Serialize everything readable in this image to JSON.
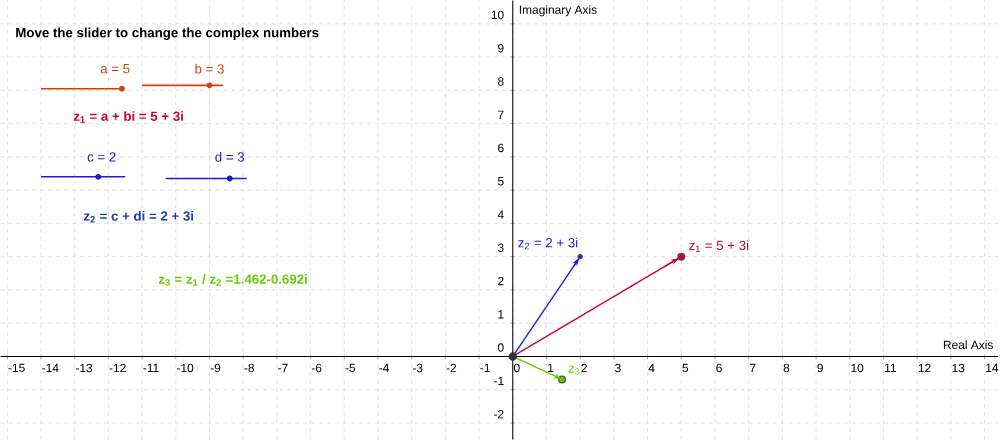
{
  "chart_data": {
    "type": "line",
    "title": "Move the slider to change the complex numbers",
    "xlabel": "Real Axis",
    "ylabel": "Imaginary Axis",
    "xlim": [
      -15.2,
      14.4
    ],
    "ylim": [
      -2.5,
      10.7
    ],
    "xticks": [
      -15,
      -14,
      -13,
      -12,
      -11,
      -10,
      -9,
      -8,
      -7,
      -6,
      -5,
      -4,
      -3,
      -2,
      -1,
      0,
      1,
      2,
      3,
      4,
      5,
      6,
      7,
      8,
      9,
      10,
      11,
      12,
      13,
      14
    ],
    "yticks": [
      -2,
      -1,
      0,
      1,
      2,
      3,
      4,
      5,
      6,
      7,
      8,
      9,
      10
    ],
    "grid": true,
    "marker": "circle",
    "series": [
      {
        "name": "z$_{1}$ = 5 + 3i",
        "color": "#cc0033",
        "x": [
          0,
          5
        ],
        "values": [
          0,
          3
        ]
      },
      {
        "name": "z$_{2}$ = 2 + 3i",
        "color": "#1a1ad8",
        "x": [
          0,
          2
        ],
        "values": [
          0,
          3
        ]
      },
      {
        "name": "z$_{3}$",
        "color": "#66cc00",
        "x": [
          0,
          1.462
        ],
        "values": [
          0,
          -0.692
        ]
      },
      {
        "type": "scatter",
        "color": "#333333",
        "x": [
          0
        ],
        "values": [
          0
        ]
      }
    ],
    "annotations": [
      "a = 5",
      "b = 3",
      "z$_{1}$ =  a  +  bi  =  5  +  3i",
      "c = 2",
      "d = 3",
      "z$_{2}$ =  c  +  di  =  2  +  3i",
      "z$_{3}$  =  z$_{1}$  /  z$_{2}$    =1.462-0.692i"
    ]
  }
}
